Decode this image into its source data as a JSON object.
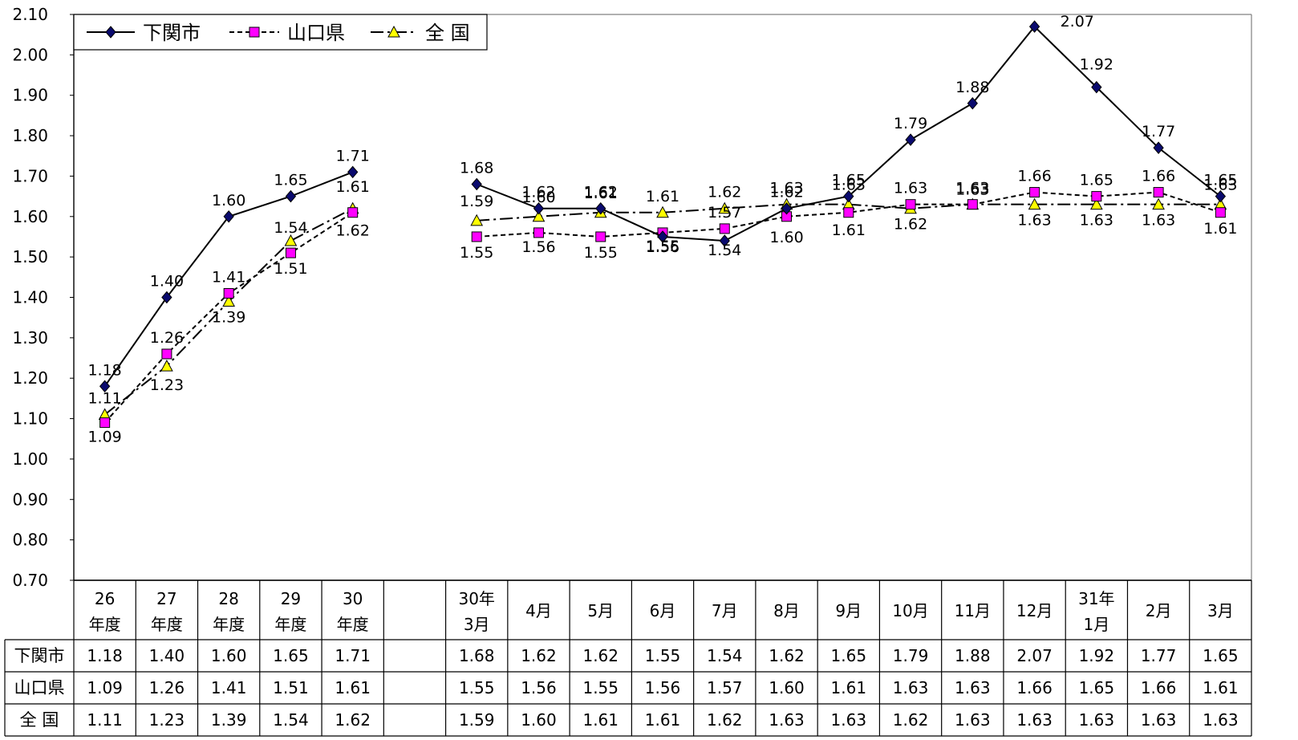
{
  "chart_data": {
    "type": "line",
    "ylim": [
      0.7,
      2.1
    ],
    "yticks": [
      "2.10",
      "2.00",
      "1.90",
      "1.80",
      "1.70",
      "1.60",
      "1.50",
      "1.40",
      "1.30",
      "1.20",
      "1.10",
      "1.00",
      "0.90",
      "0.80",
      "0.70"
    ],
    "categories": [
      [
        "26",
        "年度"
      ],
      [
        "27",
        "年度"
      ],
      [
        "28",
        "年度"
      ],
      [
        "29",
        "年度"
      ],
      [
        "30",
        "年度"
      ],
      [
        "",
        ""
      ],
      [
        "30年",
        "3月"
      ],
      [
        "4月"
      ],
      [
        "5月"
      ],
      [
        "6月"
      ],
      [
        "7月"
      ],
      [
        "8月"
      ],
      [
        "9月"
      ],
      [
        "10月"
      ],
      [
        "11月"
      ],
      [
        "12月"
      ],
      [
        "31年",
        "1月"
      ],
      [
        "2月"
      ],
      [
        "3月"
      ]
    ],
    "series": [
      {
        "name": "下関市",
        "color": "#000000",
        "marker": "diamond",
        "marker_color": "#0a0a6e",
        "dash": "",
        "values": [
          1.18,
          1.4,
          1.6,
          1.65,
          1.71,
          null,
          1.68,
          1.62,
          1.62,
          1.55,
          1.54,
          1.62,
          1.65,
          1.79,
          1.88,
          2.07,
          1.92,
          1.77,
          1.65
        ],
        "labels": [
          "1.18",
          "1.40",
          "1.60",
          "1.65",
          "1.71",
          "",
          "1.68",
          "1.62",
          "1.62",
          "1.55",
          "1.54",
          "1.62",
          "1.65",
          "1.79",
          "1.88",
          "2.07",
          "1.92",
          "1.77",
          "1.65"
        ]
      },
      {
        "name": "山口県",
        "color": "#000000",
        "marker": "square",
        "marker_color": "#ff00ff",
        "dash": "6,4",
        "values": [
          1.09,
          1.26,
          1.41,
          1.51,
          1.61,
          null,
          1.55,
          1.56,
          1.55,
          1.56,
          1.57,
          1.6,
          1.61,
          1.63,
          1.63,
          1.66,
          1.65,
          1.66,
          1.61
        ],
        "labels": [
          "1.09",
          "1.26",
          "1.41",
          "1.51",
          "1.61",
          "",
          "1.55",
          "1.56",
          "1.55",
          "1.56",
          "1.57",
          "1.60",
          "1.61",
          "1.63",
          "1.63",
          "1.66",
          "1.65",
          "1.66",
          "1.61"
        ]
      },
      {
        "name": "全 国",
        "color": "#000000",
        "marker": "triangle",
        "marker_color": "#ffff00",
        "dash": "16,5,3,5",
        "values": [
          1.11,
          1.23,
          1.39,
          1.54,
          1.62,
          null,
          1.59,
          1.6,
          1.61,
          1.61,
          1.62,
          1.63,
          1.63,
          1.62,
          1.63,
          1.63,
          1.63,
          1.63,
          1.63
        ],
        "labels": [
          "1.11",
          "1.23",
          "1.39",
          "1.54",
          "1.62",
          "",
          "1.59",
          "1.60",
          "1.61",
          "1.61",
          "1.62",
          "1.63",
          "1.63",
          "1.62",
          "1.63",
          "1.63",
          "1.63",
          "1.63",
          "1.63"
        ]
      }
    ]
  }
}
